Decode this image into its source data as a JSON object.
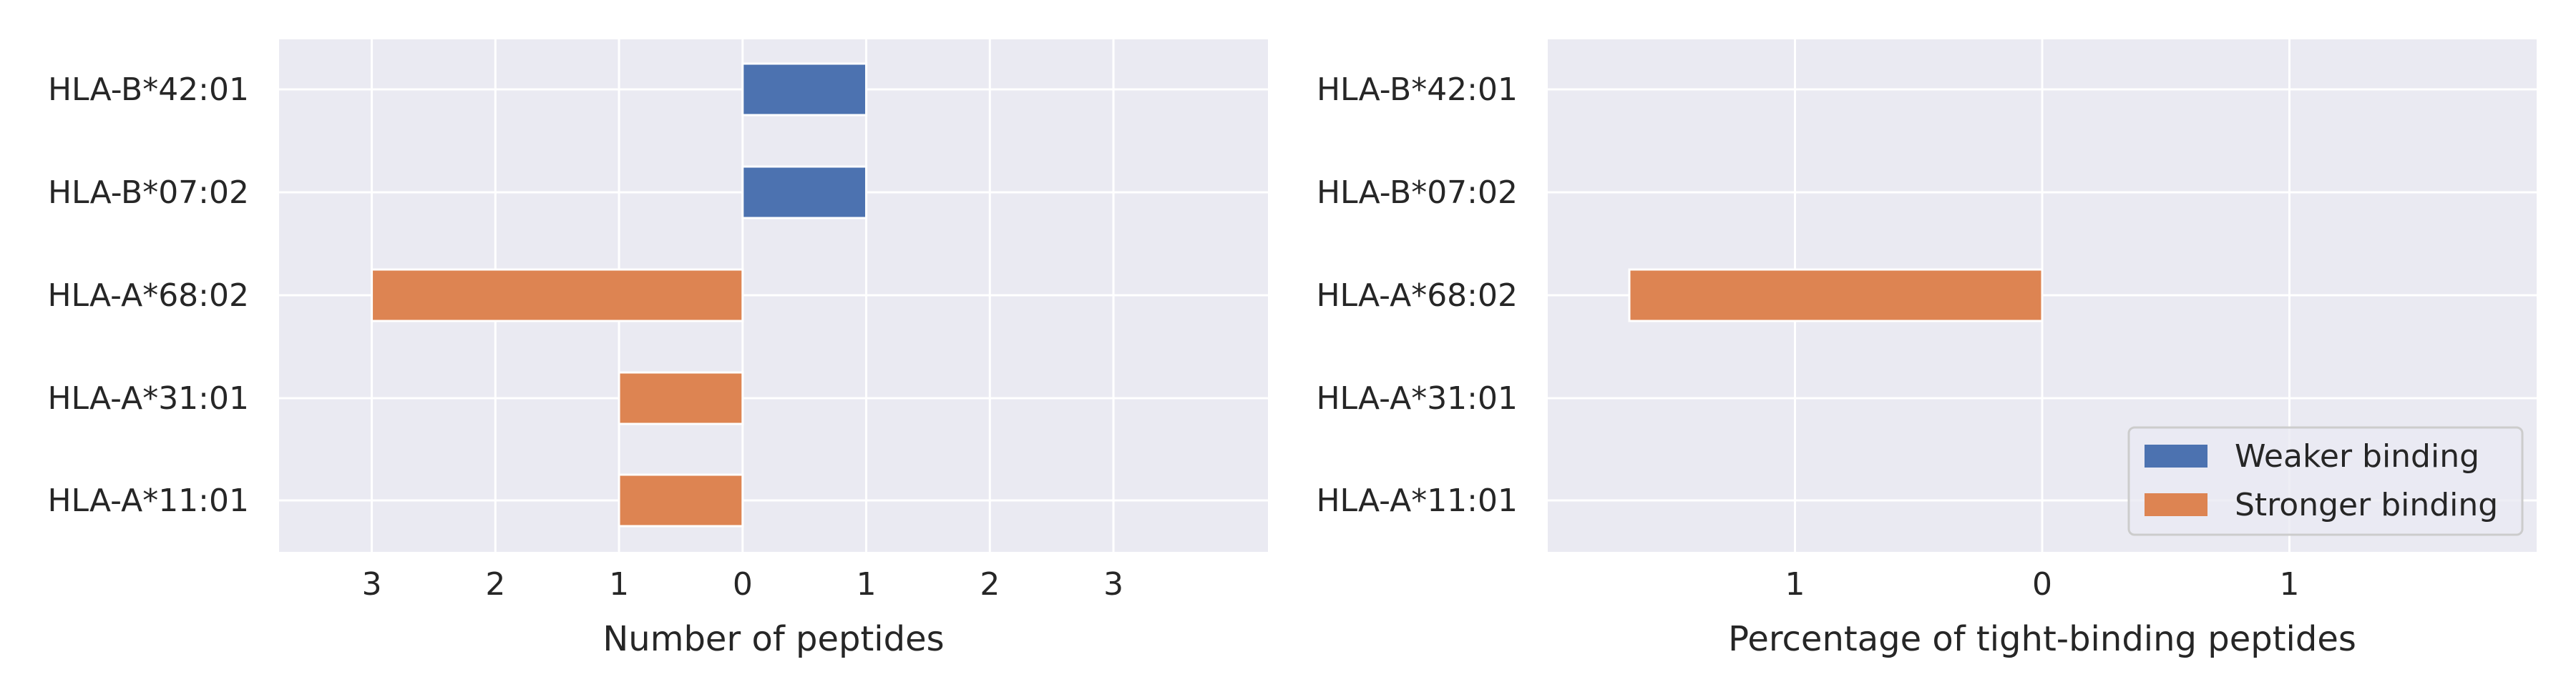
{
  "colors": {
    "background": "#eaeaf2",
    "grid": "#ffffff",
    "weaker": "#4c72b0",
    "stronger": "#dd8452",
    "text": "#262626",
    "legend_border": "#cccccc"
  },
  "chart_data": [
    {
      "type": "bar",
      "orientation": "horizontal",
      "categories": [
        "HLA-B*42:01",
        "HLA-B*07:02",
        "HLA-A*68:02",
        "HLA-A*31:01",
        "HLA-A*11:01"
      ],
      "xlabel": "Number of peptides",
      "xlim": [
        -3.75,
        4.25
      ],
      "x_ticks": [
        -3,
        -2,
        -1,
        0,
        1,
        2,
        3
      ],
      "x_tick_labels": [
        "3",
        "2",
        "1",
        "0",
        "1",
        "2",
        "3"
      ],
      "grid": true,
      "series": [
        {
          "name": "Weaker binding",
          "color_key": "weaker",
          "values": [
            1,
            1,
            0,
            0,
            0
          ]
        },
        {
          "name": "Stronger binding",
          "color_key": "stronger",
          "values": [
            0,
            0,
            -3,
            -1,
            -1
          ]
        }
      ]
    },
    {
      "type": "bar",
      "orientation": "horizontal",
      "categories": [
        "HLA-B*42:01",
        "HLA-B*07:02",
        "HLA-A*68:02",
        "HLA-A*31:01",
        "HLA-A*11:01"
      ],
      "xlabel": "Percentage of tight-binding peptides",
      "xlim": [
        -2,
        2
      ],
      "x_ticks": [
        -1,
        0,
        1
      ],
      "x_tick_labels": [
        "1",
        "0",
        "1"
      ],
      "grid": true,
      "legend_position": "lower-right",
      "series": [
        {
          "name": "Weaker binding",
          "color_key": "weaker",
          "values": [
            0,
            0,
            0,
            0,
            0
          ]
        },
        {
          "name": "Stronger binding",
          "color_key": "stronger",
          "values": [
            0,
            0,
            -1.67,
            0,
            0
          ]
        }
      ]
    }
  ],
  "legend": {
    "items": [
      {
        "label": "Weaker binding",
        "color_key": "weaker"
      },
      {
        "label": "Stronger binding",
        "color_key": "stronger"
      }
    ]
  }
}
